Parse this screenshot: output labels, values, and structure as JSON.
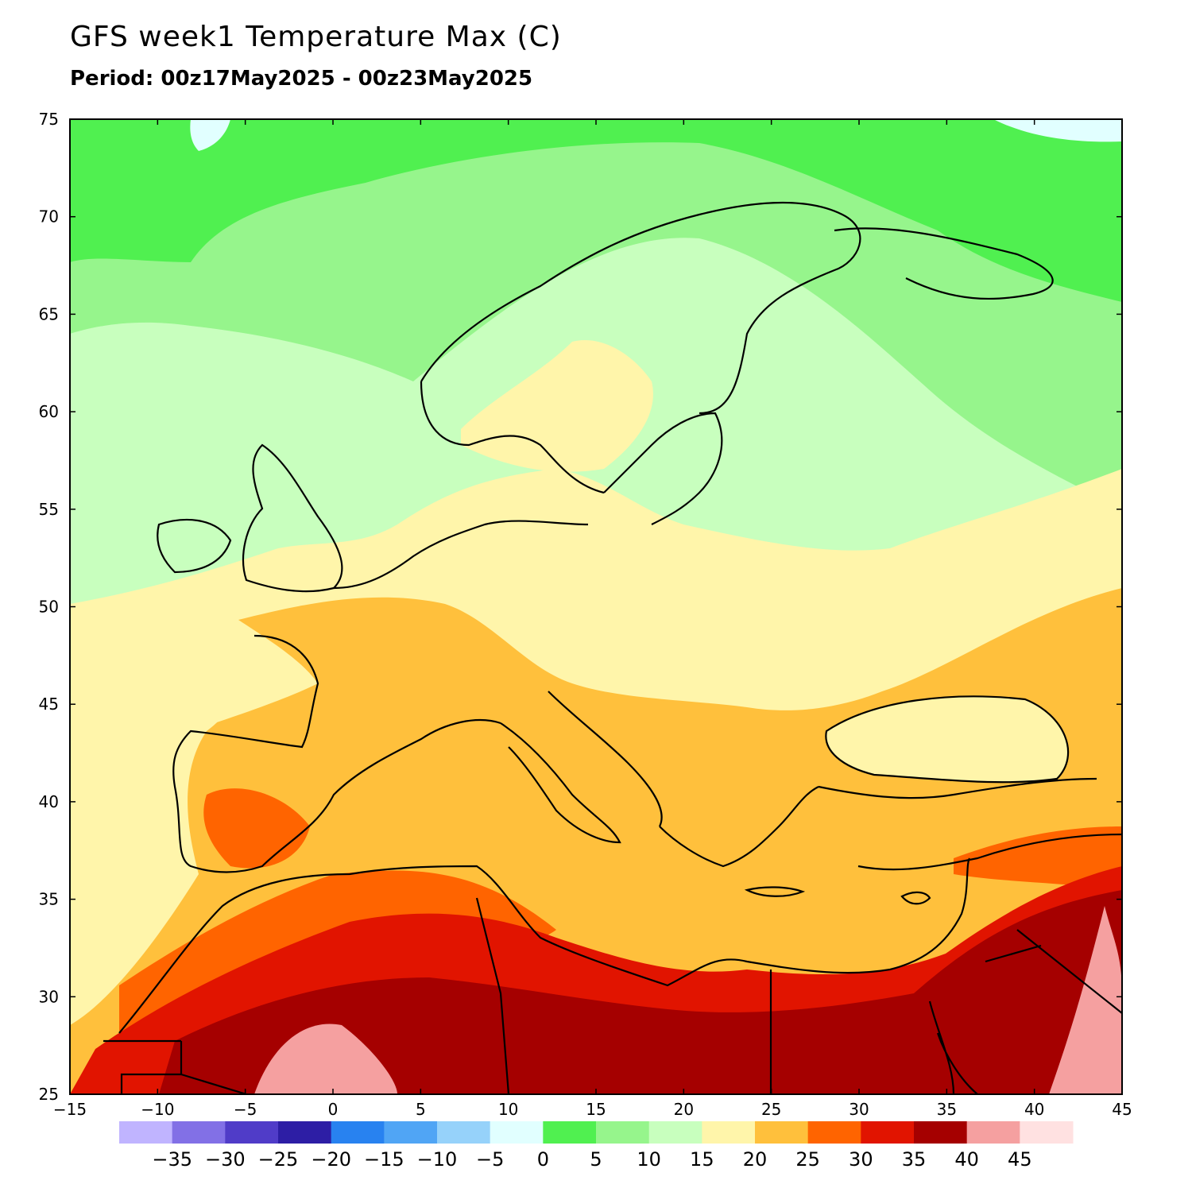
{
  "title": "GFS week1 Temperature Max (C)",
  "subtitle": "Period: 00z17May2025 - 00z23May2025",
  "map": {
    "lon_range": [
      -15,
      45
    ],
    "lat_range": [
      25,
      75
    ],
    "x_ticks": [
      "-15",
      "-10",
      "-5",
      "0",
      "5",
      "10",
      "15",
      "20",
      "25",
      "30",
      "35",
      "40",
      "45"
    ],
    "y_ticks": [
      "75",
      "70",
      "65",
      "60",
      "55",
      "50",
      "45",
      "40",
      "35",
      "30",
      "25"
    ]
  },
  "legend": {
    "colors": [
      "#c0b4ff",
      "#8270e6",
      "#503cc8",
      "#2d1ea5",
      "#2882f0",
      "#50a5f5",
      "#96d2fa",
      "#e1ffff",
      "#50f050",
      "#96f58c",
      "#c8ffbe",
      "#fff5aa",
      "#ffc03c",
      "#ff6400",
      "#e11400",
      "#a50000",
      "#f5a0a0",
      "#ffe1e1"
    ],
    "labels": [
      "-35",
      "-30",
      "-25",
      "-20",
      "-15",
      "-10",
      "-5",
      "0",
      "5",
      "10",
      "15",
      "20",
      "25",
      "30",
      "35",
      "40",
      "45"
    ]
  }
}
